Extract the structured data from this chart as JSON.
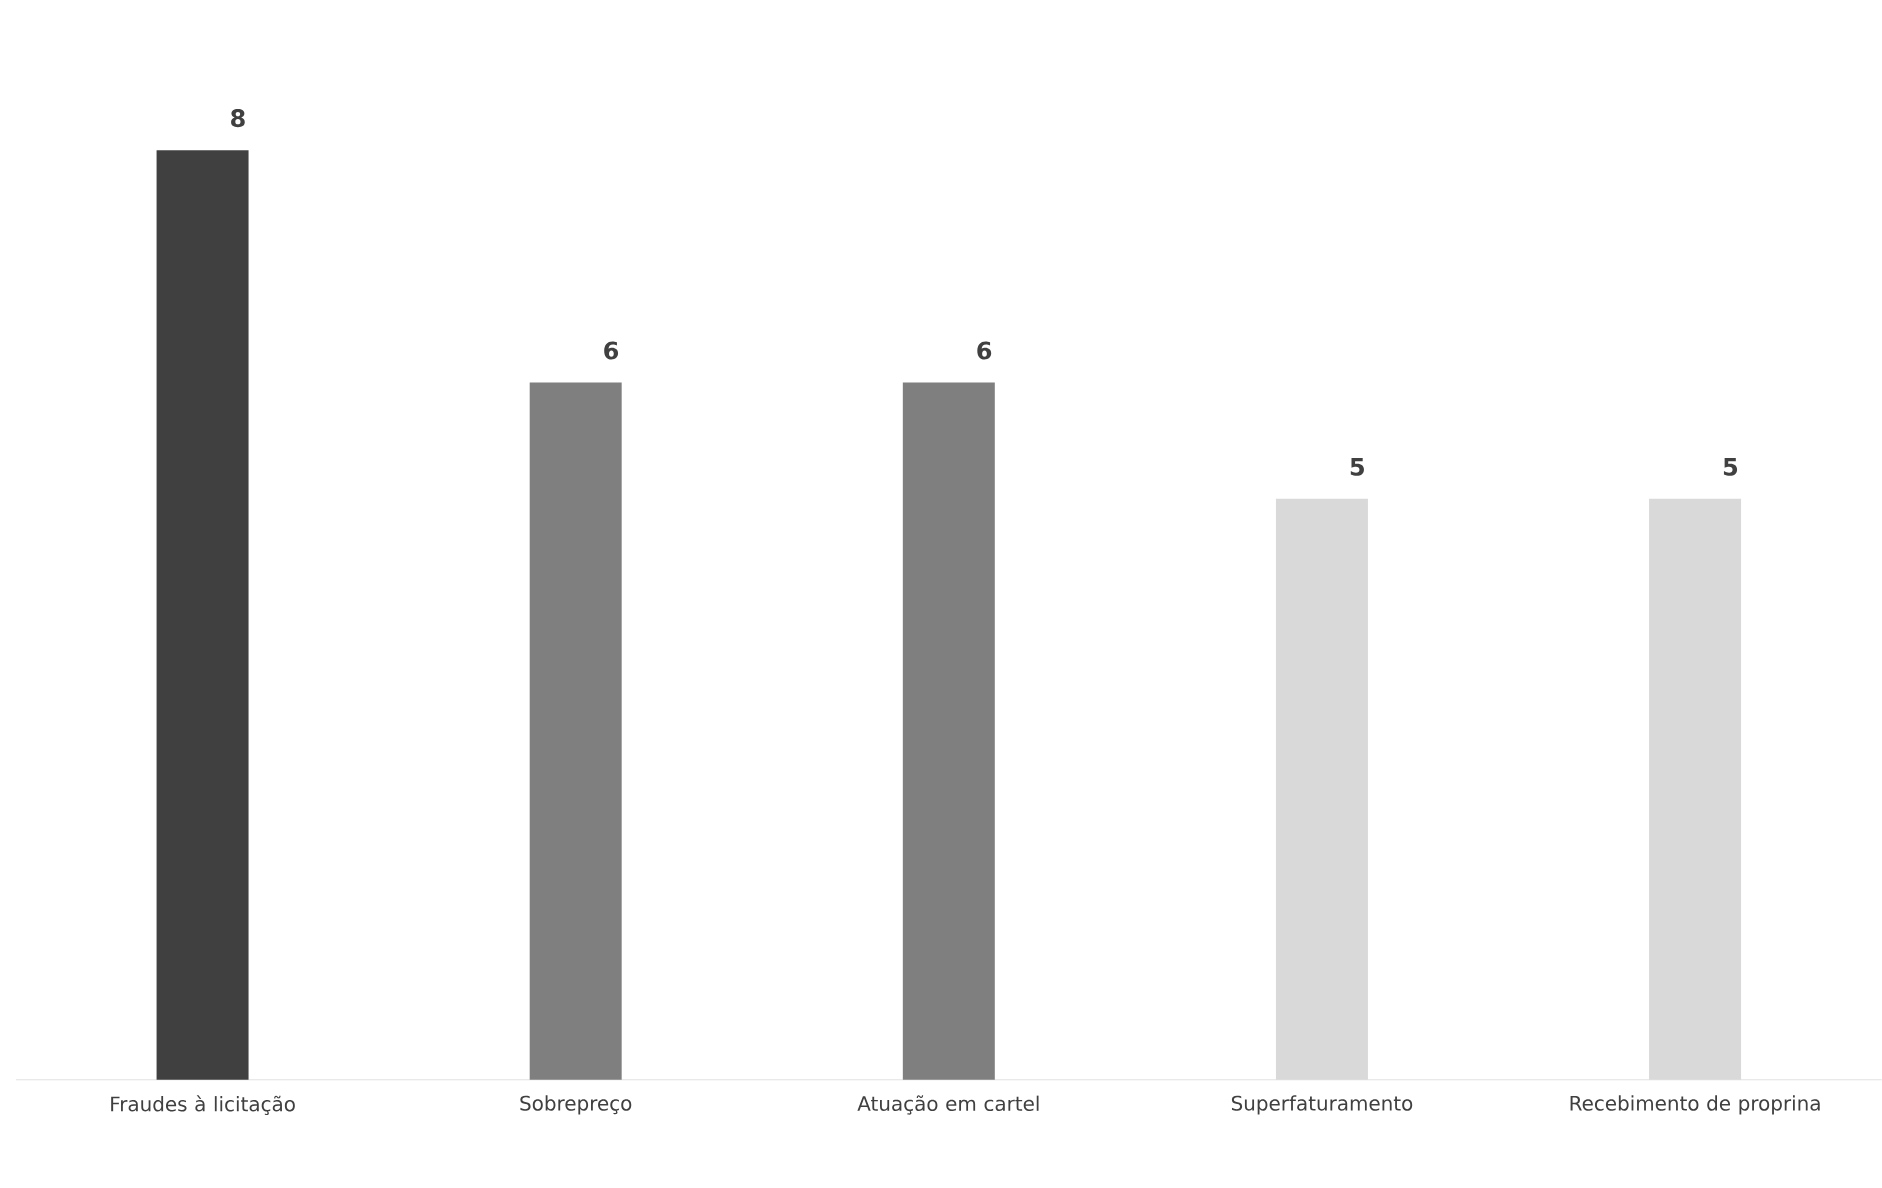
{
  "chart_data": {
    "type": "bar",
    "categories": [
      "Fraudes à licitação",
      "Sobrepreço",
      "Atuação em cartel",
      "Superfaturamento",
      "Recebimento de proprina"
    ],
    "values": [
      8,
      6,
      6,
      5,
      5
    ],
    "colors": [
      "#404040",
      "#7f7f7f",
      "#7f7f7f",
      "#d9d9d9",
      "#d9d9d9"
    ],
    "tick_labels": "x",
    "data_labels": true
  }
}
